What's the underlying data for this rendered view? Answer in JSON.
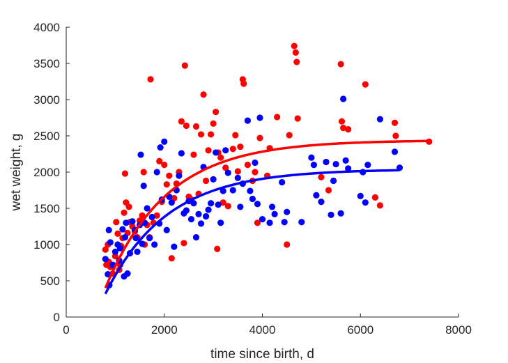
{
  "chart_data": {
    "type": "scatter",
    "xlabel": "time since birth, d",
    "ylabel": "wet weight, g",
    "xlim": [
      0,
      8000
    ],
    "ylim": [
      0,
      4000
    ],
    "xticks": [
      0,
      2000,
      4000,
      6000,
      8000
    ],
    "yticks": [
      0,
      500,
      1000,
      1500,
      2000,
      2500,
      3000,
      3500,
      4000
    ],
    "grid": false,
    "series": [
      {
        "color": "#ff0000",
        "points": [
          [
            800,
            930
          ],
          [
            820,
            720
          ],
          [
            850,
            1000
          ],
          [
            870,
            760
          ],
          [
            900,
            690
          ],
          [
            950,
            600
          ],
          [
            1000,
            840
          ],
          [
            1020,
            1310
          ],
          [
            1050,
            1150
          ],
          [
            1080,
            650
          ],
          [
            1100,
            720
          ],
          [
            1120,
            980
          ],
          [
            1150,
            1090
          ],
          [
            1180,
            1440
          ],
          [
            1200,
            1980
          ],
          [
            1220,
            1580
          ],
          [
            1250,
            1160
          ],
          [
            1280,
            1520
          ],
          [
            1300,
            1310
          ],
          [
            1350,
            1250
          ],
          [
            1400,
            1180
          ],
          [
            1450,
            1100
          ],
          [
            1500,
            1330
          ],
          [
            1550,
            1400
          ],
          [
            1580,
            2000
          ],
          [
            1600,
            1000
          ],
          [
            1650,
            1270
          ],
          [
            1700,
            1100
          ],
          [
            1720,
            3280
          ],
          [
            1780,
            1300
          ],
          [
            1850,
            1400
          ],
          [
            1900,
            2150
          ],
          [
            1950,
            1590
          ],
          [
            2000,
            2100
          ],
          [
            2050,
            1830
          ],
          [
            2100,
            1950
          ],
          [
            2150,
            810
          ],
          [
            2200,
            1640
          ],
          [
            2250,
            1840
          ],
          [
            2300,
            2000
          ],
          [
            2350,
            2700
          ],
          [
            2400,
            1020
          ],
          [
            2420,
            3470
          ],
          [
            2450,
            2640
          ],
          [
            2500,
            1660
          ],
          [
            2550,
            1620
          ],
          [
            2600,
            2240
          ],
          [
            2650,
            2630
          ],
          [
            2700,
            1700
          ],
          [
            2750,
            2520
          ],
          [
            2800,
            3070
          ],
          [
            2850,
            1880
          ],
          [
            2900,
            2300
          ],
          [
            2950,
            2520
          ],
          [
            3000,
            2670
          ],
          [
            3050,
            2830
          ],
          [
            3080,
            940
          ],
          [
            3100,
            2270
          ],
          [
            3150,
            2200
          ],
          [
            3200,
            1580
          ],
          [
            3250,
            2060
          ],
          [
            3300,
            1530
          ],
          [
            3400,
            2320
          ],
          [
            3450,
            2510
          ],
          [
            3500,
            2010
          ],
          [
            3550,
            2350
          ],
          [
            3600,
            3280
          ],
          [
            3620,
            3220
          ],
          [
            3700,
            2100
          ],
          [
            3800,
            1880
          ],
          [
            3850,
            2000
          ],
          [
            3900,
            1300
          ],
          [
            3950,
            2470
          ],
          [
            4100,
            1950
          ],
          [
            4150,
            2330
          ],
          [
            4300,
            2760
          ],
          [
            4500,
            1000
          ],
          [
            4550,
            2510
          ],
          [
            4650,
            3740
          ],
          [
            4680,
            3650
          ],
          [
            4700,
            3520
          ],
          [
            4720,
            2740
          ],
          [
            5200,
            1930
          ],
          [
            5350,
            1750
          ],
          [
            5600,
            3490
          ],
          [
            5620,
            2700
          ],
          [
            5650,
            2610
          ],
          [
            5750,
            2590
          ],
          [
            6100,
            3210
          ],
          [
            6300,
            1650
          ],
          [
            6400,
            1540
          ],
          [
            6700,
            2680
          ],
          [
            6720,
            2500
          ],
          [
            7400,
            2420
          ]
        ]
      },
      {
        "color": "#0000ff",
        "points": [
          [
            800,
            800
          ],
          [
            850,
            590
          ],
          [
            870,
            1200
          ],
          [
            880,
            440
          ],
          [
            900,
            1030
          ],
          [
            950,
            720
          ],
          [
            1000,
            900
          ],
          [
            1050,
            1000
          ],
          [
            1080,
            780
          ],
          [
            1100,
            950
          ],
          [
            1150,
            1210
          ],
          [
            1180,
            560
          ],
          [
            1200,
            1100
          ],
          [
            1220,
            1300
          ],
          [
            1250,
            600
          ],
          [
            1300,
            880
          ],
          [
            1350,
            1320
          ],
          [
            1400,
            1200
          ],
          [
            1420,
            1090
          ],
          [
            1450,
            900
          ],
          [
            1500,
            1270
          ],
          [
            1520,
            2240
          ],
          [
            1550,
            1010
          ],
          [
            1580,
            1810
          ],
          [
            1600,
            1300
          ],
          [
            1650,
            1500
          ],
          [
            1700,
            1090
          ],
          [
            1750,
            1380
          ],
          [
            1800,
            1000
          ],
          [
            1850,
            2000
          ],
          [
            1900,
            1290
          ],
          [
            1920,
            2340
          ],
          [
            1950,
            1620
          ],
          [
            2000,
            2420
          ],
          [
            2050,
            1200
          ],
          [
            2100,
            1660
          ],
          [
            2150,
            1580
          ],
          [
            2200,
            970
          ],
          [
            2250,
            1750
          ],
          [
            2300,
            1950
          ],
          [
            2350,
            2260
          ],
          [
            2400,
            1430
          ],
          [
            2450,
            1470
          ],
          [
            2500,
            1600
          ],
          [
            2550,
            1350
          ],
          [
            2600,
            1570
          ],
          [
            2650,
            1100
          ],
          [
            2700,
            1420
          ],
          [
            2750,
            1290
          ],
          [
            2800,
            2070
          ],
          [
            2850,
            1390
          ],
          [
            2900,
            1480
          ],
          [
            2950,
            1570
          ],
          [
            3000,
            1900
          ],
          [
            3050,
            2270
          ],
          [
            3100,
            1550
          ],
          [
            3150,
            1300
          ],
          [
            3200,
            1740
          ],
          [
            3250,
            2300
          ],
          [
            3300,
            1990
          ],
          [
            3400,
            1750
          ],
          [
            3500,
            1920
          ],
          [
            3550,
            1520
          ],
          [
            3600,
            1840
          ],
          [
            3700,
            2710
          ],
          [
            3750,
            1740
          ],
          [
            3800,
            1630
          ],
          [
            3850,
            2130
          ],
          [
            3900,
            1560
          ],
          [
            3950,
            2750
          ],
          [
            4000,
            1350
          ],
          [
            4150,
            1300
          ],
          [
            4200,
            1520
          ],
          [
            4250,
            1420
          ],
          [
            4400,
            1860
          ],
          [
            4450,
            1310
          ],
          [
            4500,
            1450
          ],
          [
            4800,
            1310
          ],
          [
            5000,
            2200
          ],
          [
            5050,
            2100
          ],
          [
            5100,
            1680
          ],
          [
            5200,
            1590
          ],
          [
            5300,
            2140
          ],
          [
            5400,
            1410
          ],
          [
            5450,
            1880
          ],
          [
            5500,
            2110
          ],
          [
            5600,
            1430
          ],
          [
            5650,
            3010
          ],
          [
            5700,
            2160
          ],
          [
            5750,
            2050
          ],
          [
            6000,
            1670
          ],
          [
            6050,
            2000
          ],
          [
            6100,
            1580
          ],
          [
            6150,
            2100
          ],
          [
            6400,
            2730
          ],
          [
            6700,
            2280
          ],
          [
            6800,
            2060
          ]
        ]
      }
    ],
    "fits": [
      {
        "color": "#ff0000",
        "asymptote": 2440,
        "y0": 400,
        "x0": 800,
        "rate": 0.0008
      },
      {
        "color": "#0000ff",
        "asymptote": 2040,
        "y0": 320,
        "x0": 800,
        "rate": 0.0008
      }
    ]
  }
}
